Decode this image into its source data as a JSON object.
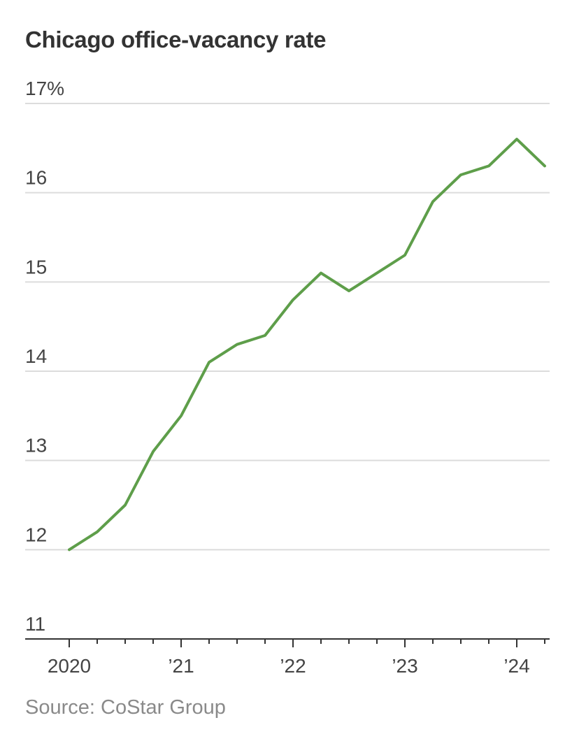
{
  "chart_data": {
    "type": "line",
    "title": "Chicago office-vacancy rate",
    "xlabel": "",
    "ylabel": "",
    "y_unit": "%",
    "ylim": [
      11,
      17
    ],
    "yticks": [
      {
        "value": 17,
        "label": "17%"
      },
      {
        "value": 16,
        "label": "16"
      },
      {
        "value": 15,
        "label": "15"
      },
      {
        "value": 14,
        "label": "14"
      },
      {
        "value": 13,
        "label": "13"
      },
      {
        "value": 12,
        "label": "12"
      },
      {
        "value": 11,
        "label": "11"
      }
    ],
    "xlim": [
      2020.0,
      2024.25
    ],
    "xticks": [
      {
        "value": 2020,
        "label": "2020"
      },
      {
        "value": 2021,
        "label": "’21"
      },
      {
        "value": 2022,
        "label": "’22"
      },
      {
        "value": 2023,
        "label": "’23"
      },
      {
        "value": 2024,
        "label": "’24"
      }
    ],
    "minor_tick_step": 0.25,
    "grid": true,
    "series": [
      {
        "name": "Chicago office-vacancy rate",
        "color": "#5e9e4a",
        "x": [
          2020.0,
          2020.25,
          2020.5,
          2020.75,
          2021.0,
          2021.25,
          2021.5,
          2021.75,
          2022.0,
          2022.25,
          2022.5,
          2022.75,
          2023.0,
          2023.25,
          2023.5,
          2023.75,
          2024.0,
          2024.25
        ],
        "values": [
          12.0,
          12.2,
          12.5,
          13.1,
          13.5,
          14.1,
          14.3,
          14.4,
          14.8,
          15.1,
          14.9,
          15.1,
          15.3,
          15.9,
          16.2,
          16.3,
          16.6,
          16.3
        ]
      }
    ],
    "source": "Source: CoStar Group"
  },
  "colors": {
    "line": "#5e9e4a",
    "grid": "#dcdcdc",
    "axis": "#333333",
    "text": "#444444"
  }
}
